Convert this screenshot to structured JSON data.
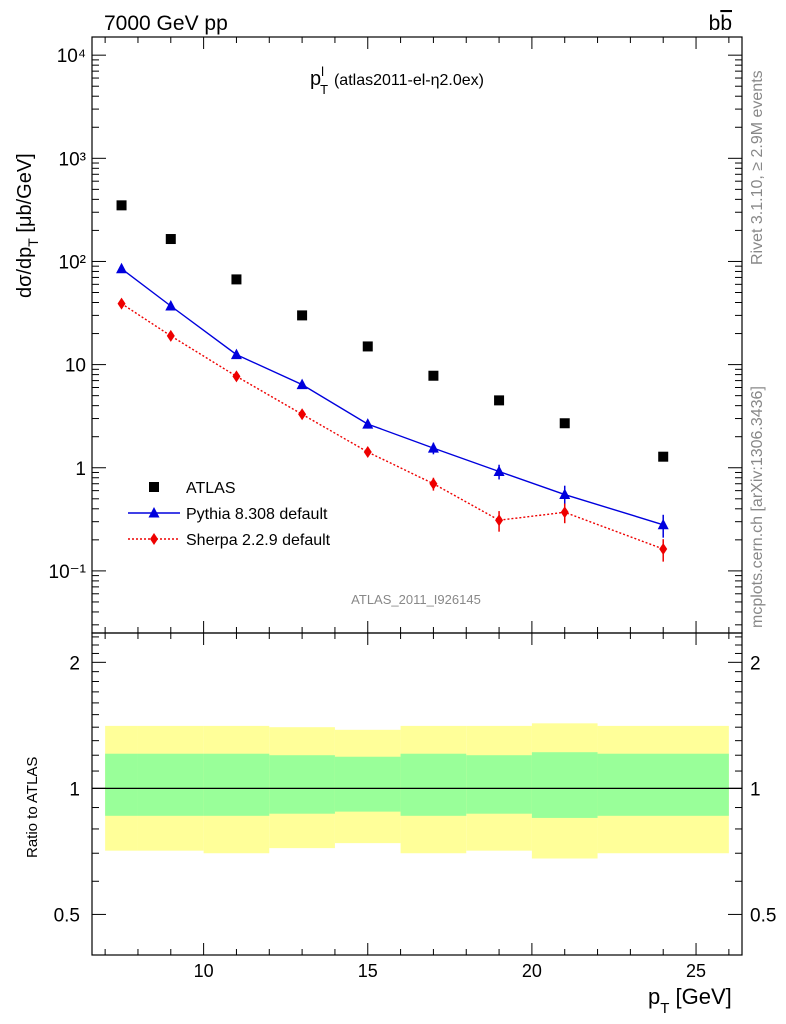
{
  "header": {
    "left": "7000 GeV pp",
    "right": "bb̅"
  },
  "side_text": {
    "rivet": "Rivet 3.1.10, ≥ 2.9M events",
    "mcplots": "mcplots.cern.ch [arXiv:1306.3436]"
  },
  "chart_data": {
    "type": "scatter",
    "title": "p_T^l (atlas2011-el-η2.0ex)",
    "title_main": "p",
    "title_sub": "T",
    "title_sup": "l",
    "title_rest": "(atlas2011-el-η2.0ex)",
    "watermark": "ATLAS_2011_I926145",
    "xlabel": "p_T [GeV]",
    "ylabel": "dσ/dp_T [μb/GeV]",
    "ratio_ylabel": "Ratio to ATLAS",
    "xlim": [
      6.6,
      26.4
    ],
    "ylim": [
      0.025,
      15000
    ],
    "yscale": "log",
    "ratio_ylim": [
      0.4,
      2.35
    ],
    "ratio_yscale": "log",
    "x_ticks": [
      10,
      15,
      20,
      25
    ],
    "y_tick_labels": [
      "10⁻¹",
      "1",
      "10",
      "10²",
      "10³",
      "10⁴"
    ],
    "ratio_ticks": [
      0.5,
      1,
      2
    ],
    "bins": [
      [
        7,
        8
      ],
      [
        8,
        10
      ],
      [
        10,
        12
      ],
      [
        12,
        14
      ],
      [
        14,
        16
      ],
      [
        16,
        18
      ],
      [
        18,
        20
      ],
      [
        20,
        22
      ],
      [
        22,
        26
      ]
    ],
    "series": [
      {
        "name": "ATLAS",
        "x": [
          7.5,
          9,
          11,
          13,
          15,
          17,
          19,
          21,
          24
        ],
        "values": [
          350,
          165,
          67,
          30,
          15,
          7.8,
          4.5,
          2.7,
          1.28
        ],
        "color": "#000000",
        "marker": "square"
      },
      {
        "name": "Pythia 8.308 default",
        "x": [
          7.5,
          9,
          11,
          13,
          15,
          17,
          19,
          21,
          24
        ],
        "values": [
          85,
          37,
          12.5,
          6.4,
          2.65,
          1.55,
          0.92,
          0.55,
          0.28
        ],
        "errors": [
          3,
          1.3,
          0.6,
          0.35,
          0.25,
          0.2,
          0.15,
          0.12,
          0.07
        ],
        "color": "#0000dd",
        "marker": "triangle",
        "line": "solid"
      },
      {
        "name": "Sherpa 2.2.9 default",
        "x": [
          7.5,
          9,
          11,
          13,
          15,
          17,
          19,
          21,
          24
        ],
        "values": [
          39,
          19,
          7.7,
          3.3,
          1.42,
          0.7,
          0.31,
          0.37,
          0.163
        ],
        "errors": [
          2,
          1,
          0.5,
          0.25,
          0.13,
          0.1,
          0.07,
          0.08,
          0.04
        ],
        "color": "#ee0000",
        "marker": "diamond",
        "line": "dotted"
      }
    ],
    "ratio_bands": {
      "inner_up": [
        1.21,
        1.21,
        1.21,
        1.2,
        1.19,
        1.21,
        1.2,
        1.22,
        1.21
      ],
      "inner_down": [
        0.86,
        0.86,
        0.86,
        0.87,
        0.88,
        0.86,
        0.87,
        0.85,
        0.86
      ],
      "outer_up": [
        1.41,
        1.41,
        1.41,
        1.4,
        1.38,
        1.41,
        1.41,
        1.43,
        1.41
      ],
      "outer_down": [
        0.71,
        0.71,
        0.7,
        0.72,
        0.74,
        0.7,
        0.71,
        0.68,
        0.7
      ],
      "inner_color": "#99ff99",
      "outer_color": "#ffff99"
    },
    "legend_position": "lower-left"
  }
}
